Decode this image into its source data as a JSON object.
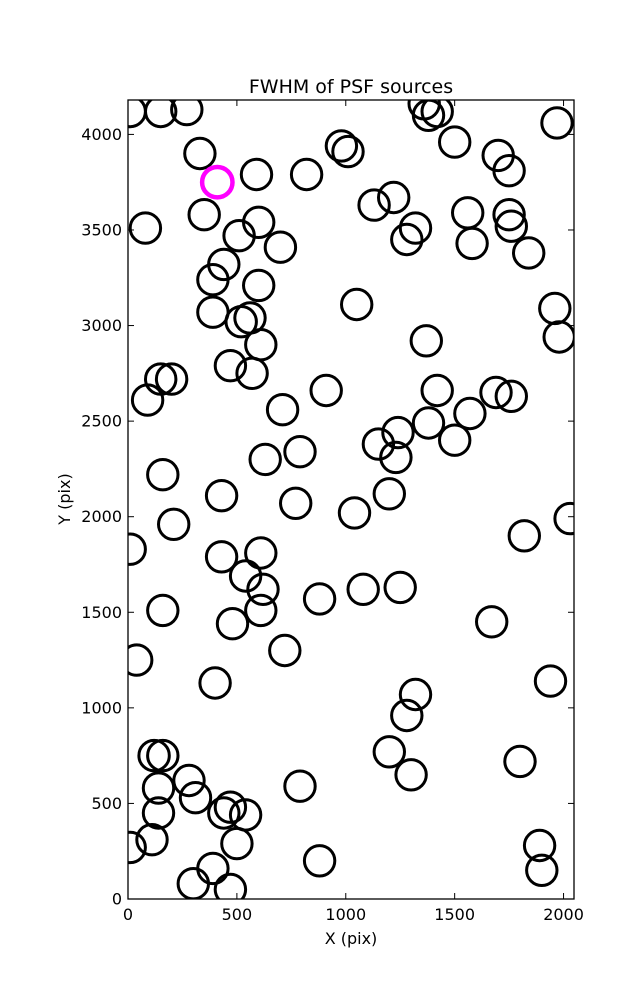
{
  "chart_data": {
    "type": "scatter",
    "title": "FWHM of PSF sources",
    "xlabel": "X (pix)",
    "ylabel": "Y (pix)",
    "xlim": [
      0,
      2048
    ],
    "ylim": [
      0,
      4180
    ],
    "xticks": [
      0,
      500,
      1000,
      1500,
      2000
    ],
    "yticks": [
      0,
      500,
      1000,
      1500,
      2000,
      2500,
      3000,
      3500,
      4000
    ],
    "grid": false,
    "legend": "none",
    "marker_radius": 70,
    "colors": {
      "normal": "#000000",
      "highlight": "#ff00ff"
    },
    "highlight": {
      "x": 410,
      "y": 3750
    },
    "points": [
      {
        "x": 10,
        "y": 4120
      },
      {
        "x": 150,
        "y": 4120
      },
      {
        "x": 270,
        "y": 4130
      },
      {
        "x": 330,
        "y": 3900
      },
      {
        "x": 590,
        "y": 3790
      },
      {
        "x": 80,
        "y": 3510
      },
      {
        "x": 350,
        "y": 3580
      },
      {
        "x": 510,
        "y": 3470
      },
      {
        "x": 600,
        "y": 3540
      },
      {
        "x": 700,
        "y": 3410
      },
      {
        "x": 390,
        "y": 3240
      },
      {
        "x": 440,
        "y": 3320
      },
      {
        "x": 600,
        "y": 3210
      },
      {
        "x": 390,
        "y": 3070
      },
      {
        "x": 520,
        "y": 3020
      },
      {
        "x": 560,
        "y": 3040
      },
      {
        "x": 610,
        "y": 2900
      },
      {
        "x": 470,
        "y": 2790
      },
      {
        "x": 570,
        "y": 2750
      },
      {
        "x": 90,
        "y": 2610
      },
      {
        "x": 150,
        "y": 2720
      },
      {
        "x": 200,
        "y": 2720
      },
      {
        "x": 710,
        "y": 2560
      },
      {
        "x": 910,
        "y": 2660
      },
      {
        "x": 160,
        "y": 2220
      },
      {
        "x": 630,
        "y": 2300
      },
      {
        "x": 790,
        "y": 2340
      },
      {
        "x": 430,
        "y": 2110
      },
      {
        "x": 770,
        "y": 2070
      },
      {
        "x": 210,
        "y": 1960
      },
      {
        "x": 10,
        "y": 1830
      },
      {
        "x": 430,
        "y": 1790
      },
      {
        "x": 610,
        "y": 1810
      },
      {
        "x": 540,
        "y": 1690
      },
      {
        "x": 620,
        "y": 1620
      },
      {
        "x": 610,
        "y": 1510
      },
      {
        "x": 480,
        "y": 1440
      },
      {
        "x": 160,
        "y": 1510
      },
      {
        "x": 720,
        "y": 1300
      },
      {
        "x": 40,
        "y": 1250
      },
      {
        "x": 400,
        "y": 1130
      },
      {
        "x": 820,
        "y": 3790
      },
      {
        "x": 980,
        "y": 3940
      },
      {
        "x": 1010,
        "y": 3910
      },
      {
        "x": 1050,
        "y": 3110
      },
      {
        "x": 1130,
        "y": 3630
      },
      {
        "x": 1220,
        "y": 3670
      },
      {
        "x": 1280,
        "y": 3450
      },
      {
        "x": 1320,
        "y": 3510
      },
      {
        "x": 1360,
        "y": 4160
      },
      {
        "x": 1380,
        "y": 4100
      },
      {
        "x": 1420,
        "y": 4120
      },
      {
        "x": 1500,
        "y": 3960
      },
      {
        "x": 1560,
        "y": 3590
      },
      {
        "x": 1580,
        "y": 3430
      },
      {
        "x": 1700,
        "y": 3890
      },
      {
        "x": 1750,
        "y": 3810
      },
      {
        "x": 1750,
        "y": 3580
      },
      {
        "x": 1760,
        "y": 3520
      },
      {
        "x": 1840,
        "y": 3380
      },
      {
        "x": 1970,
        "y": 4060
      },
      {
        "x": 1960,
        "y": 3090
      },
      {
        "x": 1980,
        "y": 2940
      },
      {
        "x": 1370,
        "y": 2920
      },
      {
        "x": 1420,
        "y": 2660
      },
      {
        "x": 1570,
        "y": 2540
      },
      {
        "x": 1500,
        "y": 2400
      },
      {
        "x": 1380,
        "y": 2490
      },
      {
        "x": 1240,
        "y": 2440
      },
      {
        "x": 1230,
        "y": 2310
      },
      {
        "x": 1150,
        "y": 2380
      },
      {
        "x": 1200,
        "y": 2120
      },
      {
        "x": 1040,
        "y": 2020
      },
      {
        "x": 1690,
        "y": 2650
      },
      {
        "x": 1760,
        "y": 2630
      },
      {
        "x": 1820,
        "y": 1900
      },
      {
        "x": 2030,
        "y": 1990
      },
      {
        "x": 880,
        "y": 1570
      },
      {
        "x": 1080,
        "y": 1620
      },
      {
        "x": 1250,
        "y": 1630
      },
      {
        "x": 1670,
        "y": 1450
      },
      {
        "x": 1940,
        "y": 1140
      },
      {
        "x": 1320,
        "y": 1070
      },
      {
        "x": 1280,
        "y": 960
      },
      {
        "x": 1200,
        "y": 770
      },
      {
        "x": 1300,
        "y": 650
      },
      {
        "x": 1800,
        "y": 720
      },
      {
        "x": 120,
        "y": 750
      },
      {
        "x": 160,
        "y": 750
      },
      {
        "x": 140,
        "y": 580
      },
      {
        "x": 140,
        "y": 450
      },
      {
        "x": 280,
        "y": 620
      },
      {
        "x": 310,
        "y": 530
      },
      {
        "x": 440,
        "y": 450
      },
      {
        "x": 470,
        "y": 480
      },
      {
        "x": 540,
        "y": 440
      },
      {
        "x": 500,
        "y": 290
      },
      {
        "x": 110,
        "y": 310
      },
      {
        "x": 10,
        "y": 270
      },
      {
        "x": 390,
        "y": 160
      },
      {
        "x": 300,
        "y": 80
      },
      {
        "x": 470,
        "y": 50
      },
      {
        "x": 790,
        "y": 590
      },
      {
        "x": 880,
        "y": 200
      },
      {
        "x": 1890,
        "y": 280
      },
      {
        "x": 1900,
        "y": 150
      }
    ]
  }
}
